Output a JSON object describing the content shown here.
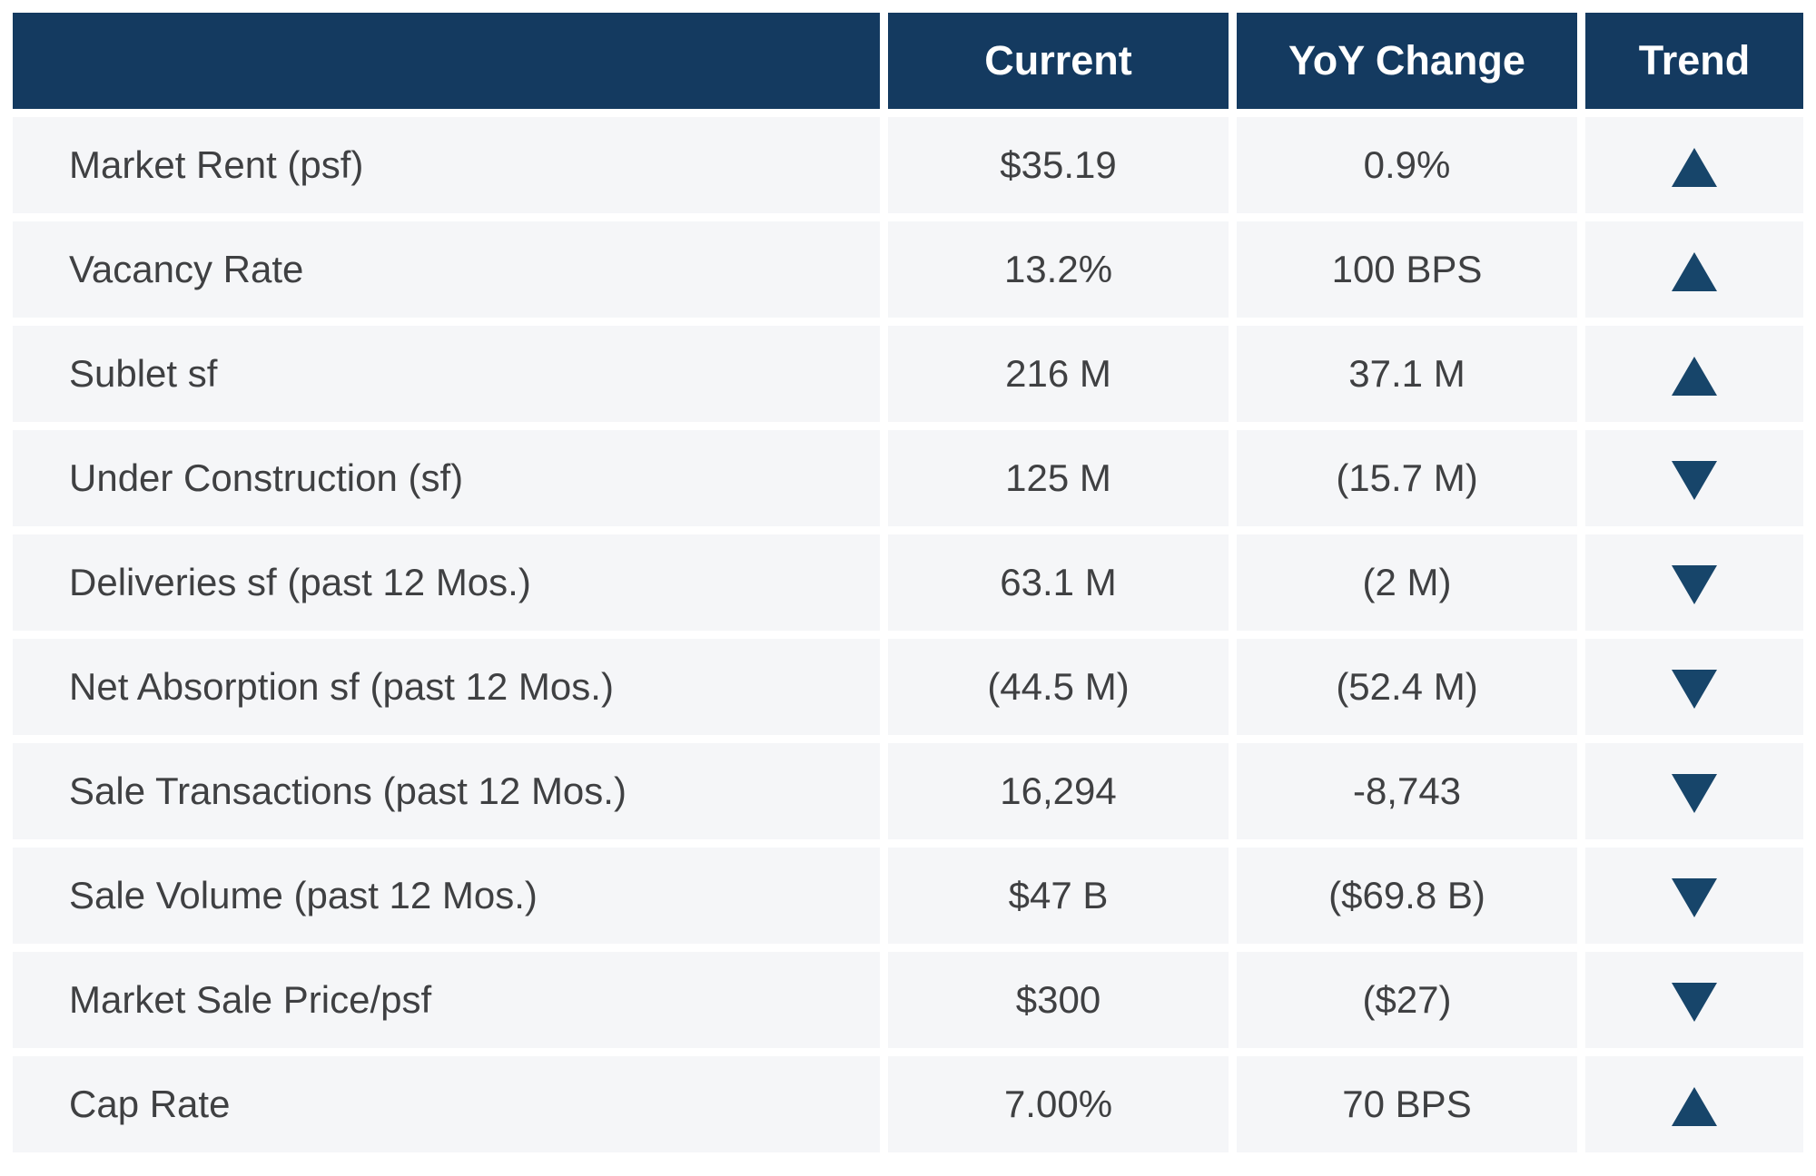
{
  "table": {
    "headers": {
      "metric": "",
      "current": "Current",
      "yoy": "YoY Change",
      "trend": "Trend"
    },
    "rows": [
      {
        "metric": "Market Rent (psf)",
        "current": "$35.19",
        "yoy": "0.9%",
        "trend": "up"
      },
      {
        "metric": "Vacancy Rate",
        "current": "13.2%",
        "yoy": "100 BPS",
        "trend": "up"
      },
      {
        "metric": "Sublet sf",
        "current": "216 M",
        "yoy": "37.1 M",
        "trend": "up"
      },
      {
        "metric": "Under Construction (sf)",
        "current": "125 M",
        "yoy": "(15.7 M)",
        "trend": "down"
      },
      {
        "metric": "Deliveries sf (past 12 Mos.)",
        "current": "63.1 M",
        "yoy": "(2 M)",
        "trend": "down"
      },
      {
        "metric": "Net Absorption sf (past 12 Mos.)",
        "current": "(44.5 M)",
        "yoy": "(52.4 M)",
        "trend": "down"
      },
      {
        "metric": "Sale Transactions (past 12 Mos.)",
        "current": "16,294",
        "yoy": "-8,743",
        "trend": "down"
      },
      {
        "metric": "Sale Volume (past 12 Mos.)",
        "current": "$47 B",
        "yoy": "($69.8 B)",
        "trend": "down"
      },
      {
        "metric": "Market Sale Price/psf",
        "current": "$300",
        "yoy": "($27)",
        "trend": "down"
      },
      {
        "metric": "Cap Rate",
        "current": "7.00%",
        "yoy": "70 BPS",
        "trend": "up"
      }
    ],
    "colors": {
      "header_bg": "#143A60",
      "header_text": "#FFFFFF",
      "row_bg": "#F5F6F8",
      "body_text": "#3F4042",
      "trend_arrow": "#17456A"
    }
  },
  "chart_data": {
    "type": "table",
    "title": "",
    "columns": [
      "",
      "Current",
      "YoY Change",
      "Trend"
    ],
    "rows": [
      [
        "Market Rent (psf)",
        "$35.19",
        "0.9%",
        "up"
      ],
      [
        "Vacancy Rate",
        "13.2%",
        "100 BPS",
        "up"
      ],
      [
        "Sublet sf",
        "216 M",
        "37.1 M",
        "up"
      ],
      [
        "Under Construction (sf)",
        "125 M",
        "(15.7 M)",
        "down"
      ],
      [
        "Deliveries sf (past 12 Mos.)",
        "63.1 M",
        "(2 M)",
        "down"
      ],
      [
        "Net Absorption sf (past 12 Mos.)",
        "(44.5 M)",
        "(52.4 M)",
        "down"
      ],
      [
        "Sale Transactions (past 12 Mos.)",
        "16,294",
        "-8,743",
        "down"
      ],
      [
        "Sale Volume (past 12 Mos.)",
        "$47 B",
        "($69.8 B)",
        "down"
      ],
      [
        "Market Sale Price/psf",
        "$300",
        "($27)",
        "down"
      ],
      [
        "Cap Rate",
        "7.00%",
        "70 BPS",
        "up"
      ]
    ]
  }
}
